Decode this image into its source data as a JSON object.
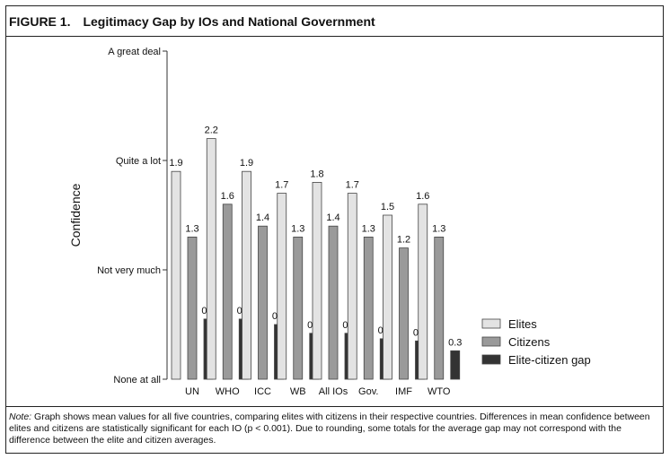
{
  "figure": {
    "label": "FIGURE 1.",
    "title": "Legitimacy Gap by IOs and National Government"
  },
  "note": {
    "lead": "Note:",
    "text": " Graph shows mean values for all five countries, comparing elites with citizens in their respective countries. Differences in mean confidence between elites and citizens are statistically significant for each IO (p < 0.001). Due to rounding, some totals for the average gap may not correspond with the difference between the elite and citizen averages."
  },
  "chart_data": {
    "type": "bar",
    "ylabel": "Confidence",
    "xlabel": "",
    "ylim": [
      0,
      3
    ],
    "yticks": [
      {
        "value": 3,
        "label": "A great deal"
      },
      {
        "value": 2,
        "label": "Quite a lot"
      },
      {
        "value": 1,
        "label": "Not very much"
      },
      {
        "value": 0,
        "label": "None at all"
      }
    ],
    "categories": [
      "UN",
      "WHO",
      "ICC",
      "WB",
      "All IOs",
      "Gov.",
      "IMF",
      "WTO"
    ],
    "series": [
      {
        "name": "Elites",
        "color": "#e3e3e3",
        "values": [
          1.9,
          2.2,
          1.9,
          1.7,
          1.8,
          1.7,
          1.5,
          1.6
        ],
        "labels": [
          "1.9",
          "2.2",
          "1.9",
          "1.7",
          "1.8",
          "1.7",
          "1.5",
          "1.6"
        ]
      },
      {
        "name": "Citizens",
        "color": "#9a9a9a",
        "values": [
          1.3,
          1.6,
          1.4,
          1.3,
          1.4,
          1.3,
          1.2,
          1.3
        ],
        "labels": [
          "1.3",
          "1.6",
          "1.4",
          "1.3",
          "1.4",
          "1.3",
          "1.2",
          "1.3"
        ]
      },
      {
        "name": "Elite-citizen gap",
        "color": "#333333",
        "values": [
          0.55,
          0.55,
          0.5,
          0.42,
          0.42,
          0.37,
          0.35,
          0.26
        ],
        "labels": [
          "0.6",
          "0.5",
          "0.5",
          "0.4",
          "0.4",
          "0.4",
          "0.3",
          "0.3"
        ]
      }
    ],
    "legend": "right",
    "grid": false
  }
}
